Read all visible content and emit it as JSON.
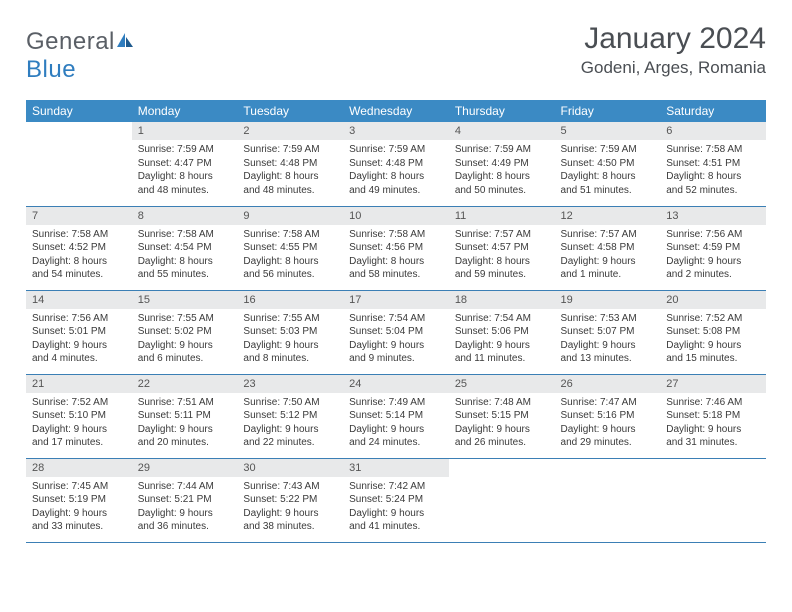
{
  "logo": {
    "general": "General",
    "blue": "Blue"
  },
  "title": "January 2024",
  "location": "Godeni, Arges, Romania",
  "colors": {
    "header_bg": "#3b8ac4",
    "header_text": "#ffffff",
    "daynum_bg": "#e8e9ea",
    "row_border": "#3b7fb5",
    "logo_gray": "#5a5f66",
    "logo_blue": "#2f7dbf",
    "body_text": "#3a3a3a"
  },
  "weekdays": [
    "Sunday",
    "Monday",
    "Tuesday",
    "Wednesday",
    "Thursday",
    "Friday",
    "Saturday"
  ],
  "weeks": [
    [
      {
        "n": "",
        "sr": "",
        "ss": "",
        "dl": ""
      },
      {
        "n": "1",
        "sr": "7:59 AM",
        "ss": "4:47 PM",
        "dl": "8 hours and 48 minutes."
      },
      {
        "n": "2",
        "sr": "7:59 AM",
        "ss": "4:48 PM",
        "dl": "8 hours and 48 minutes."
      },
      {
        "n": "3",
        "sr": "7:59 AM",
        "ss": "4:48 PM",
        "dl": "8 hours and 49 minutes."
      },
      {
        "n": "4",
        "sr": "7:59 AM",
        "ss": "4:49 PM",
        "dl": "8 hours and 50 minutes."
      },
      {
        "n": "5",
        "sr": "7:59 AM",
        "ss": "4:50 PM",
        "dl": "8 hours and 51 minutes."
      },
      {
        "n": "6",
        "sr": "7:58 AM",
        "ss": "4:51 PM",
        "dl": "8 hours and 52 minutes."
      }
    ],
    [
      {
        "n": "7",
        "sr": "7:58 AM",
        "ss": "4:52 PM",
        "dl": "8 hours and 54 minutes."
      },
      {
        "n": "8",
        "sr": "7:58 AM",
        "ss": "4:54 PM",
        "dl": "8 hours and 55 minutes."
      },
      {
        "n": "9",
        "sr": "7:58 AM",
        "ss": "4:55 PM",
        "dl": "8 hours and 56 minutes."
      },
      {
        "n": "10",
        "sr": "7:58 AM",
        "ss": "4:56 PM",
        "dl": "8 hours and 58 minutes."
      },
      {
        "n": "11",
        "sr": "7:57 AM",
        "ss": "4:57 PM",
        "dl": "8 hours and 59 minutes."
      },
      {
        "n": "12",
        "sr": "7:57 AM",
        "ss": "4:58 PM",
        "dl": "9 hours and 1 minute."
      },
      {
        "n": "13",
        "sr": "7:56 AM",
        "ss": "4:59 PM",
        "dl": "9 hours and 2 minutes."
      }
    ],
    [
      {
        "n": "14",
        "sr": "7:56 AM",
        "ss": "5:01 PM",
        "dl": "9 hours and 4 minutes."
      },
      {
        "n": "15",
        "sr": "7:55 AM",
        "ss": "5:02 PM",
        "dl": "9 hours and 6 minutes."
      },
      {
        "n": "16",
        "sr": "7:55 AM",
        "ss": "5:03 PM",
        "dl": "9 hours and 8 minutes."
      },
      {
        "n": "17",
        "sr": "7:54 AM",
        "ss": "5:04 PM",
        "dl": "9 hours and 9 minutes."
      },
      {
        "n": "18",
        "sr": "7:54 AM",
        "ss": "5:06 PM",
        "dl": "9 hours and 11 minutes."
      },
      {
        "n": "19",
        "sr": "7:53 AM",
        "ss": "5:07 PM",
        "dl": "9 hours and 13 minutes."
      },
      {
        "n": "20",
        "sr": "7:52 AM",
        "ss": "5:08 PM",
        "dl": "9 hours and 15 minutes."
      }
    ],
    [
      {
        "n": "21",
        "sr": "7:52 AM",
        "ss": "5:10 PM",
        "dl": "9 hours and 17 minutes."
      },
      {
        "n": "22",
        "sr": "7:51 AM",
        "ss": "5:11 PM",
        "dl": "9 hours and 20 minutes."
      },
      {
        "n": "23",
        "sr": "7:50 AM",
        "ss": "5:12 PM",
        "dl": "9 hours and 22 minutes."
      },
      {
        "n": "24",
        "sr": "7:49 AM",
        "ss": "5:14 PM",
        "dl": "9 hours and 24 minutes."
      },
      {
        "n": "25",
        "sr": "7:48 AM",
        "ss": "5:15 PM",
        "dl": "9 hours and 26 minutes."
      },
      {
        "n": "26",
        "sr": "7:47 AM",
        "ss": "5:16 PM",
        "dl": "9 hours and 29 minutes."
      },
      {
        "n": "27",
        "sr": "7:46 AM",
        "ss": "5:18 PM",
        "dl": "9 hours and 31 minutes."
      }
    ],
    [
      {
        "n": "28",
        "sr": "7:45 AM",
        "ss": "5:19 PM",
        "dl": "9 hours and 33 minutes."
      },
      {
        "n": "29",
        "sr": "7:44 AM",
        "ss": "5:21 PM",
        "dl": "9 hours and 36 minutes."
      },
      {
        "n": "30",
        "sr": "7:43 AM",
        "ss": "5:22 PM",
        "dl": "9 hours and 38 minutes."
      },
      {
        "n": "31",
        "sr": "7:42 AM",
        "ss": "5:24 PM",
        "dl": "9 hours and 41 minutes."
      },
      {
        "n": "",
        "sr": "",
        "ss": "",
        "dl": ""
      },
      {
        "n": "",
        "sr": "",
        "ss": "",
        "dl": ""
      },
      {
        "n": "",
        "sr": "",
        "ss": "",
        "dl": ""
      }
    ]
  ],
  "labels": {
    "sunrise": "Sunrise: ",
    "sunset": "Sunset: ",
    "daylight": "Daylight: "
  }
}
